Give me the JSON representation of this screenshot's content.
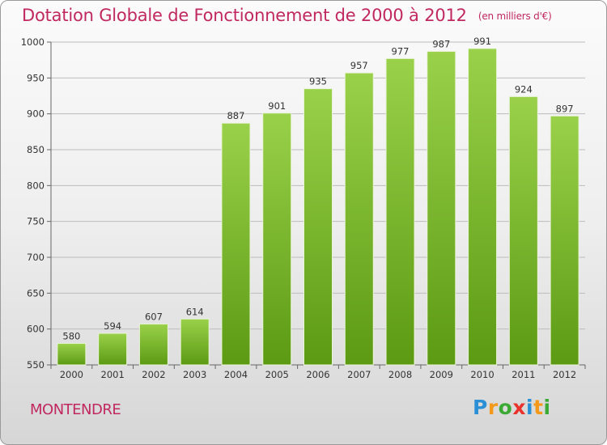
{
  "title": "Dotation Globale de Fonctionnement de 2000 à 2012",
  "subtitle": "(en milliers d'€)",
  "commune": "MONTENDRE",
  "logo": {
    "letters": [
      "P",
      "r",
      "o",
      "x",
      "i",
      "t",
      "i"
    ],
    "colors": [
      "#2b8fd6",
      "#f39a1c",
      "#3aaa35",
      "#e8322b",
      "#2b8fd6",
      "#f39a1c",
      "#3aaa35"
    ]
  },
  "colors": {
    "bar": "#7cbf2a",
    "bar_light": "#9ad14a",
    "bar_dark": "#5c9a14",
    "accent": "#c0285f",
    "grid": "#bcbcbc"
  },
  "chart_data": {
    "type": "bar",
    "title": "Dotation Globale de Fonctionnement de 2000 à 2012",
    "subtitle": "(en milliers d'€)",
    "categories": [
      "2000",
      "2001",
      "2002",
      "2003",
      "2004",
      "2005",
      "2006",
      "2007",
      "2008",
      "2009",
      "2010",
      "2011",
      "2012"
    ],
    "values": [
      580,
      594,
      607,
      614,
      887,
      901,
      935,
      957,
      977,
      987,
      991,
      924,
      897
    ],
    "ylim": [
      550,
      1000
    ],
    "yticks": [
      550,
      600,
      650,
      700,
      750,
      800,
      850,
      900,
      950,
      1000
    ],
    "grid": true
  }
}
